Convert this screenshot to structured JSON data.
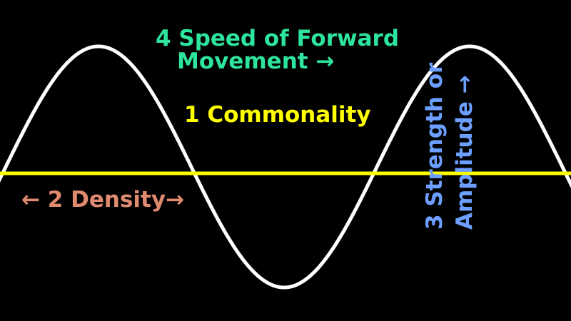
{
  "colors": {
    "background": "#000000",
    "wave": "#ffffff",
    "baseline": "#ffff00",
    "commonality": "#ffff00",
    "density": "#e08a70",
    "strength": "#6c9fff",
    "speed": "#2ee59d"
  },
  "labels": {
    "speed_line1": "4 Speed of Forward",
    "speed_line2": "Movement →",
    "commonality": "1 Commonality",
    "density": "← 2 Density→",
    "strength_line1": "3 Strength or",
    "strength_line2": "Amplitude →"
  }
}
